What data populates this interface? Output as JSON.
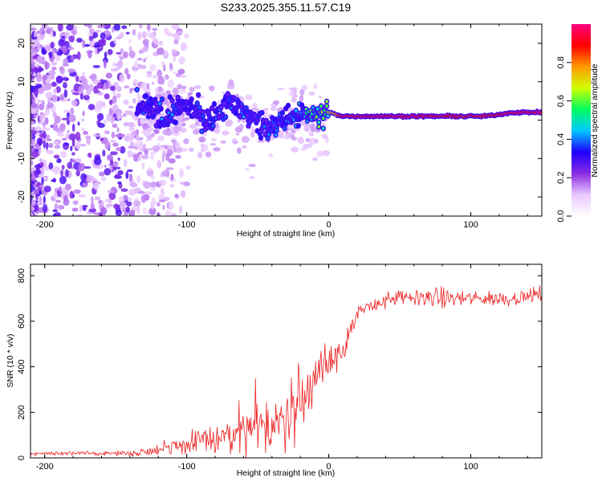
{
  "title": "S233.2025.355.11.57.C19",
  "chart_data": [
    {
      "type": "heatmap",
      "name": "spectrogram",
      "xlabel": "Height of straight line (km)",
      "ylabel": "Frequency (Hz)",
      "xlim": [
        -210,
        150
      ],
      "ylim": [
        -25,
        25
      ],
      "xticks": [
        -200,
        -100,
        0,
        100
      ],
      "xtick_labels": [
        "-200",
        "-100",
        "0",
        "100"
      ],
      "yticks": [
        -20,
        -10,
        0,
        10,
        20
      ],
      "ytick_labels": [
        "-20",
        "-10",
        "0",
        "10",
        "20"
      ],
      "colorbar": {
        "label": "Normalized spectral amplitude",
        "range": [
          0,
          1
        ],
        "ticks": [
          0.0,
          0.2,
          0.4,
          0.6,
          0.8
        ],
        "tick_labels": [
          "0.0",
          "0.2",
          "0.4",
          "0.6",
          "0.8"
        ],
        "colors": [
          "#ffffff",
          "#e9c8ff",
          "#8a2be2",
          "#1f00ff",
          "#00c8ff",
          "#00ff60",
          "#d0ff00",
          "#ff9a00",
          "#ff0000",
          "#ff0080"
        ]
      },
      "ridge": {
        "description_points_x": [
          -130,
          -115,
          -100,
          -85,
          -70,
          -60,
          -45,
          -35,
          -25,
          -15,
          -5,
          0,
          10,
          30,
          50,
          70,
          90,
          110,
          130,
          150
        ],
        "frequency_hz": [
          3,
          1,
          4,
          0,
          5,
          2,
          -2,
          -1,
          1,
          2,
          1,
          2,
          1,
          1,
          1,
          1,
          1,
          1,
          2,
          2
        ],
        "amplitude": [
          0.4,
          0.45,
          0.4,
          0.4,
          0.45,
          0.45,
          0.4,
          0.45,
          0.5,
          0.6,
          0.7,
          0.7,
          0.95,
          0.95,
          0.95,
          0.95,
          0.9,
          0.9,
          0.95,
          0.95
        ]
      }
    },
    {
      "type": "line",
      "name": "snr",
      "xlabel": "Height of straight line (km)",
      "ylabel": "SNR (10 * v/v)",
      "xlim": [
        -210,
        150
      ],
      "ylim": [
        0,
        850
      ],
      "xticks": [
        -200,
        -100,
        0,
        100
      ],
      "xtick_labels": [
        "-200",
        "-100",
        "0",
        "100"
      ],
      "yticks": [
        0,
        200,
        400,
        600,
        800
      ],
      "ytick_labels": [
        "0",
        "200",
        "400",
        "600",
        "800"
      ],
      "series": [
        {
          "name": "SNR",
          "color": "#ee2222",
          "x": [
            -210,
            -190,
            -170,
            -150,
            -140,
            -130,
            -120,
            -110,
            -100,
            -90,
            -80,
            -70,
            -60,
            -50,
            -40,
            -30,
            -25,
            -20,
            -15,
            -10,
            -5,
            0,
            5,
            10,
            15,
            20,
            25,
            30,
            40,
            50,
            60,
            70,
            80,
            90,
            100,
            110,
            120,
            130,
            140,
            150
          ],
          "values": [
            20,
            20,
            20,
            20,
            20,
            25,
            40,
            50,
            60,
            70,
            80,
            100,
            110,
            120,
            140,
            170,
            200,
            240,
            280,
            350,
            400,
            420,
            440,
            480,
            560,
            620,
            650,
            670,
            690,
            700,
            700,
            710,
            700,
            700,
            700,
            700,
            700,
            700,
            710,
            720
          ],
          "noise": [
            8,
            8,
            8,
            8,
            12,
            15,
            25,
            35,
            45,
            55,
            65,
            80,
            90,
            95,
            105,
            110,
            110,
            100,
            100,
            100,
            95,
            90,
            70,
            60,
            50,
            40,
            30,
            30,
            30,
            35,
            35,
            35,
            40,
            35,
            30,
            30,
            30,
            30,
            30,
            30
          ]
        }
      ]
    }
  ]
}
